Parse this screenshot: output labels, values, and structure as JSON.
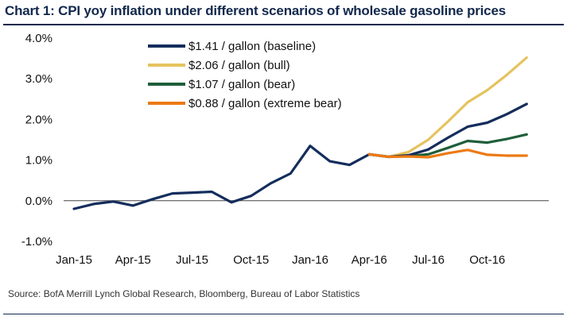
{
  "chart_data": {
    "type": "line",
    "title": "Chart 1: CPI yoy inflation under different scenarios of wholesale gasoline prices",
    "xlabel": "",
    "ylabel": "",
    "ylim": [
      -1.0,
      4.0
    ],
    "yticks": [
      "-1.0%",
      "0.0%",
      "1.0%",
      "2.0%",
      "3.0%",
      "4.0%"
    ],
    "ytick_values": [
      -1,
      0,
      1,
      2,
      3,
      4
    ],
    "x": [
      "Jan-15",
      "Feb-15",
      "Mar-15",
      "Apr-15",
      "May-15",
      "Jun-15",
      "Jul-15",
      "Aug-15",
      "Sep-15",
      "Oct-15",
      "Nov-15",
      "Dec-15",
      "Jan-16",
      "Feb-16",
      "Mar-16",
      "Apr-16",
      "May-16",
      "Jun-16",
      "Jul-16",
      "Aug-16",
      "Sep-16",
      "Oct-16",
      "Nov-16",
      "Dec-16"
    ],
    "xtick_labels": [
      {
        "label": "Jan-15",
        "index": 0
      },
      {
        "label": "Apr-15",
        "index": 3
      },
      {
        "label": "Jul-15",
        "index": 6
      },
      {
        "label": "Oct-15",
        "index": 9
      },
      {
        "label": "Jan-16",
        "index": 12
      },
      {
        "label": "Apr-16",
        "index": 15
      },
      {
        "label": "Jul-16",
        "index": 18
      },
      {
        "label": "Oct-16",
        "index": 21
      }
    ],
    "legend_position": "top-center",
    "series": [
      {
        "name": "$2.06 / gallon (bull)",
        "color": "#e5c35e",
        "values": [
          null,
          null,
          null,
          null,
          null,
          null,
          null,
          null,
          null,
          null,
          null,
          null,
          null,
          null,
          null,
          1.14,
          1.08,
          1.2,
          1.5,
          1.95,
          2.42,
          2.72,
          3.1,
          3.52
        ]
      },
      {
        "name": "$1.07 / gallon (bear)",
        "color": "#1f5e3a",
        "values": [
          null,
          null,
          null,
          null,
          null,
          null,
          null,
          null,
          null,
          null,
          null,
          null,
          null,
          null,
          null,
          1.14,
          1.08,
          1.1,
          1.14,
          1.3,
          1.47,
          1.43,
          1.52,
          1.63
        ]
      },
      {
        "name": "$1.41 / gallon (baseline)",
        "color": "#142d5c",
        "values": [
          -0.2,
          -0.08,
          -0.02,
          -0.12,
          0.04,
          0.18,
          0.2,
          0.22,
          -0.04,
          0.12,
          0.43,
          0.67,
          1.35,
          0.97,
          0.88,
          1.14,
          1.08,
          1.12,
          1.26,
          1.55,
          1.82,
          1.92,
          2.13,
          2.38
        ]
      },
      {
        "name": "$0.88 / gallon (extreme bear)",
        "color": "#ec7a14",
        "values": [
          null,
          null,
          null,
          null,
          null,
          null,
          null,
          null,
          null,
          null,
          null,
          null,
          null,
          null,
          null,
          1.14,
          1.08,
          1.09,
          1.07,
          1.17,
          1.25,
          1.13,
          1.11,
          1.11
        ]
      }
    ],
    "legend": [
      {
        "name": "$1.41 / gallon (baseline)",
        "color": "#142d5c"
      },
      {
        "name": "$2.06 / gallon (bull)",
        "color": "#e5c35e"
      },
      {
        "name": "$1.07 / gallon (bear)",
        "color": "#1f5e3a"
      },
      {
        "name": "$0.88 / gallon (extreme bear)",
        "color": "#ec7a14"
      }
    ]
  },
  "source": "Source: BofA Merrill Lynch Global Research, Bloomberg, Bureau of Labor Statistics"
}
